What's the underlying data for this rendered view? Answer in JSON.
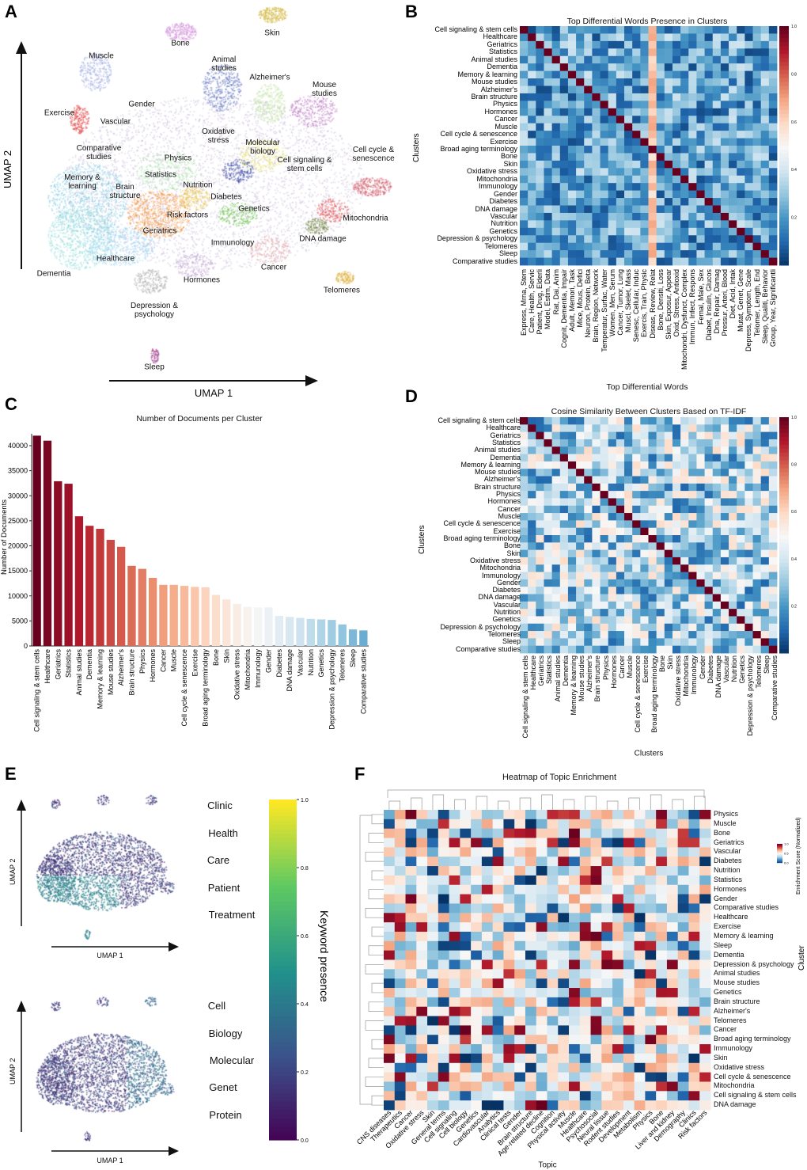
{
  "panels": {
    "a": "A",
    "b": "B",
    "c": "C",
    "d": "D",
    "e": "E",
    "f": "F"
  },
  "clusters": [
    "Cell signaling & stem cells",
    "Healthcare",
    "Geriatrics",
    "Statistics",
    "Animal studies",
    "Dementia",
    "Memory & learning",
    "Mouse studies",
    "Alzheimer's",
    "Brain structure",
    "Physics",
    "Hormones",
    "Cancer",
    "Muscle",
    "Cell cycle & senescence",
    "Exercise",
    "Broad aging terminology",
    "Bone",
    "Skin",
    "Oxidative stress",
    "Mitochondria",
    "Immunology",
    "Gender",
    "Diabetes",
    "DNA damage",
    "Vascular",
    "Nutrition",
    "Genetics",
    "Depression & psychology",
    "Telomeres",
    "Sleep",
    "Comparative studies"
  ],
  "panel_a": {
    "xlabel": "UMAP 1",
    "ylabel": "UMAP 2",
    "labels": [
      "Bone",
      "Skin",
      "Muscle",
      "Animal\nstudies",
      "Alzheimer's",
      "Mouse\nstudies",
      "Exercise",
      "Gender",
      "Vascular",
      "Oxidative\nstress",
      "Molecular\nbiology",
      "Comparative\nstudies",
      "Physics",
      "Cell signaling &\nstem cells",
      "Cell cycle &\nsenescence",
      "Memory &\nlearning",
      "Brain\nstructure",
      "Statistics",
      "Nutrition",
      "Diabetes",
      "Genetics",
      "Risk factors",
      "Mitochondria",
      "Geriatrics",
      "DNA damage",
      "Immunology",
      "Healthcare",
      "Cancer",
      "Dementia",
      "Hormones",
      "Telomeres",
      "Depression &\npsychology",
      "Sleep"
    ]
  },
  "chart_data": [
    {
      "type": "heatmap",
      "title": "Top Differential Words Presence in Clusters",
      "xlabel": "Top Differential Words",
      "ylabel": "Clusters",
      "columns": [
        "Express, Mrna, Stem",
        "Care, Health, Servic",
        "Patient, Drug, Elderli",
        "Model, Estim, Data",
        "Rat, Dai, Anim",
        "Cognit, Dementia, Impair",
        "Adult, Memori, Task",
        "Mice, Mous, Defici",
        "Neuron, Protein, Beta",
        "Brain, Region, Network",
        "Temperatur, Surfac, Water",
        "Women, Men, Serum",
        "Cancer, Tumor, Lung",
        "Muscl, Skelet, Mass",
        "Senesc, Cellular, Induc",
        "Exercis, Train, Physic",
        "Diseas, Review, Relat",
        "Bone, Densiti, Loss",
        "Skin, Exposur, Appear",
        "Oxid, Stress, Antioxid",
        "Mitochondri, Dysfunct, Complex",
        "Immun, Infect, Respons",
        "Femal, Male, Sex",
        "Diabet, Insulin, Glucos",
        "Dna, Repair, Damag",
        "Pressur, Arteri, Blood",
        "Diet, Acid, Intak",
        "Mutat, Genet, Gene",
        "Depress, Symptom, Scale",
        "Telomer, Length, End",
        "Sleep, Qualiti, Behavior",
        "Group, Year, Significantli"
      ],
      "colorbar_ticks": [
        0.2,
        0.4,
        0.6,
        0.8,
        1.0
      ],
      "colormap": "RdBu_r",
      "diagonal": 1.0
    },
    {
      "type": "bar",
      "title": "Number of Documents per Cluster",
      "xlabel": "",
      "ylabel": "Number of Documents",
      "ylim": [
        0,
        42000
      ],
      "yticks": [
        0,
        5000,
        10000,
        15000,
        20000,
        25000,
        30000,
        35000,
        40000
      ],
      "values": [
        42000,
        41000,
        32900,
        32400,
        25900,
        24000,
        23400,
        21200,
        19800,
        16000,
        15400,
        13600,
        12200,
        12200,
        12000,
        11800,
        11700,
        10200,
        9300,
        8400,
        7800,
        7700,
        7700,
        6000,
        5800,
        5600,
        5400,
        5300,
        5200,
        4300,
        3300,
        3100
      ]
    },
    {
      "type": "heatmap",
      "title": "Cosine Similarity Between Clusters Based on TF-IDF",
      "xlabel": "Clusters",
      "ylabel": "Clusters",
      "colorbar_ticks": [
        0.2,
        0.4,
        0.6,
        0.8,
        1.0
      ],
      "colormap": "RdBu_r",
      "diagonal": 1.0
    },
    {
      "type": "scatter",
      "xlabel": "UMAP 1",
      "ylabel": "UMAP 2",
      "keywords_top": [
        "Clinic",
        "Health",
        "Care",
        "Patient",
        "Treatment"
      ],
      "keywords_bottom": [
        "Cell",
        "Biology",
        "Molecular",
        "Genet",
        "Protein"
      ],
      "colorbar_label": "Keyword presence",
      "colorbar_ticks": [
        "0.0",
        "0.2",
        "0.4",
        "0.6",
        "0.8",
        "1.0"
      ],
      "colormap": "viridis"
    },
    {
      "type": "heatmap",
      "title": "Heatmap of Topic Enrichment",
      "xlabel": "Topic",
      "ylabel": "Cluster",
      "colorbar_label": "Enrichment Score (Normalized)",
      "colorbar_ticks": [
        "0.0",
        "0.5",
        "1.0"
      ],
      "colormap": "RdBu_r",
      "rows": [
        "Physics",
        "Muscle",
        "Bone",
        "Geriatrics",
        "Vascular",
        "Diabetes",
        "Nutrition",
        "Statistics",
        "Hormones",
        "Gender",
        "Comparative studies",
        "Healthcare",
        "Exercise",
        "Memory & learning",
        "Sleep",
        "Dementia",
        "Depression & psychology",
        "Animal studies",
        "Mouse studies",
        "Genetics",
        "Brain structure",
        "Alzheimer's",
        "Telomeres",
        "Cancer",
        "Broad aging terminology",
        "Immunology",
        "Skin",
        "Oxidative stress",
        "Cell cycle & senescence",
        "Mitochondria",
        "Cell signaling & stem cells",
        "DNA damage"
      ],
      "columns": [
        "CNS diseases",
        "Therapeutics",
        "Cancer",
        "Oxidative stress",
        "Skin",
        "General terms",
        "Cell signaling",
        "Cell biology",
        "Genetics",
        "Cardiovascular",
        "Analytics",
        "Clinical tests",
        "Gender",
        "Brain structure",
        "Age-related decline",
        "Cognition",
        "Physical activity",
        "Muscle",
        "Healthcare",
        "Psychosocial",
        "Neural tissue",
        "Rodent studies",
        "Development",
        "Metabolism",
        "Physics",
        "Bone",
        "Liver and kidney",
        "Demography",
        "Clinics",
        "Risk factors"
      ]
    }
  ]
}
